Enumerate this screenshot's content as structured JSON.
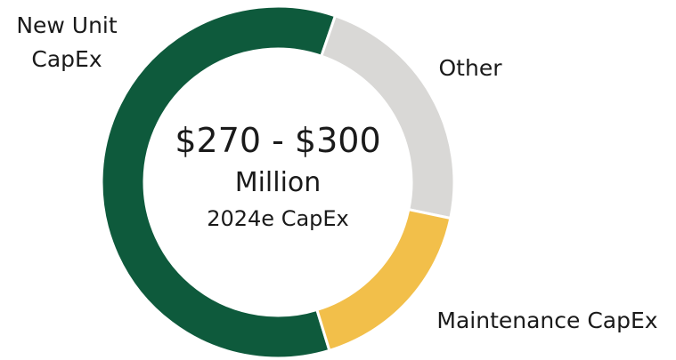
{
  "chart_data": {
    "type": "donut",
    "categories": [
      "New Unit CapEx",
      "Other",
      "Maintenance CapEx"
    ],
    "values": [
      60,
      23,
      17
    ],
    "colors": [
      "#0e5a3c",
      "#d9d8d6",
      "#f2bf4a"
    ],
    "center_text": [
      "$270 - $300",
      "Million",
      "2024e CapEx"
    ]
  }
}
